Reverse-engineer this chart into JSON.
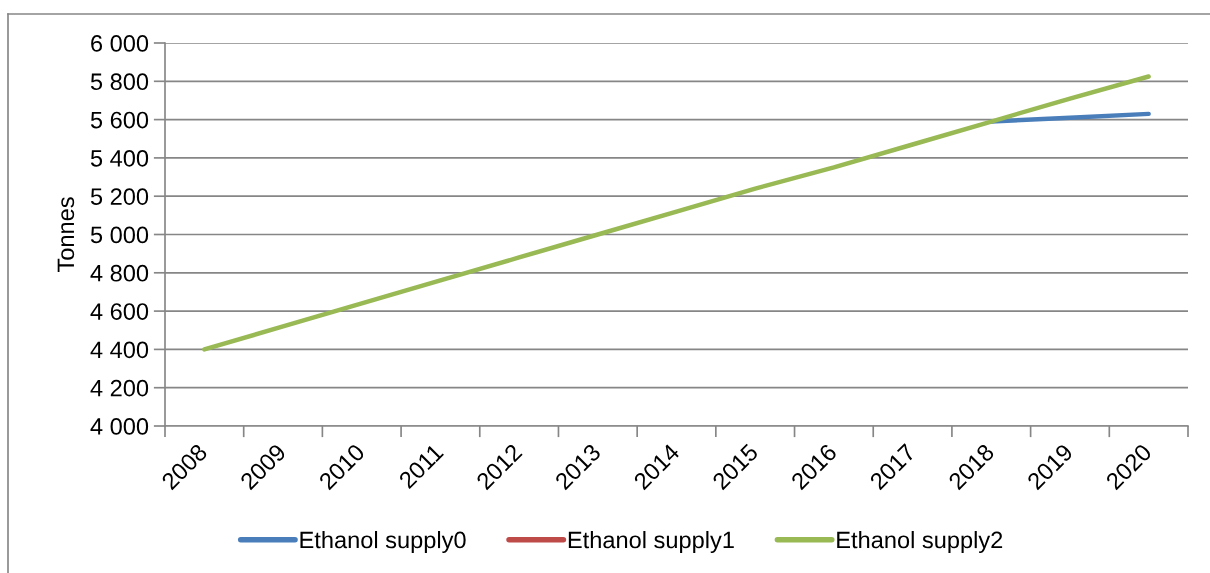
{
  "chart_data": {
    "type": "line",
    "ylabel": "Tonnes",
    "categories": [
      "2008",
      "2009",
      "2010",
      "2011",
      "2012",
      "2013",
      "2014",
      "2015",
      "2016",
      "2017",
      "2018",
      "2019",
      "2020"
    ],
    "series": [
      {
        "name": "Ethanol supply0",
        "color": "#4a7ebb",
        "values": [
          null,
          null,
          null,
          null,
          null,
          null,
          null,
          null,
          null,
          null,
          5590,
          5610,
          5630
        ]
      },
      {
        "name": "Ethanol supply1",
        "color": "#be4b48",
        "values": [
          null,
          null,
          null,
          null,
          null,
          null,
          null,
          null,
          null,
          null,
          null,
          null,
          null
        ]
      },
      {
        "name": "Ethanol supply2",
        "color": "#98b954",
        "values": [
          4400,
          4520,
          4640,
          4760,
          4880,
          5000,
          5120,
          5240,
          5350,
          5470,
          5590,
          5710,
          5825
        ]
      }
    ],
    "ylim": [
      4000,
      6000
    ],
    "yticks": [
      {
        "value": 4000,
        "label": "4 000"
      },
      {
        "value": 4200,
        "label": "4 200"
      },
      {
        "value": 4400,
        "label": "4 400"
      },
      {
        "value": 4600,
        "label": "4 600"
      },
      {
        "value": 4800,
        "label": "4 800"
      },
      {
        "value": 5000,
        "label": "5 000"
      },
      {
        "value": 5200,
        "label": "5 200"
      },
      {
        "value": 5400,
        "label": "5 400"
      },
      {
        "value": 5600,
        "label": "5 600"
      },
      {
        "value": 5800,
        "label": "5 800"
      },
      {
        "value": 6000,
        "label": "6 000"
      }
    ],
    "grid": "y",
    "legend": "bottom",
    "line_style": "solid"
  }
}
